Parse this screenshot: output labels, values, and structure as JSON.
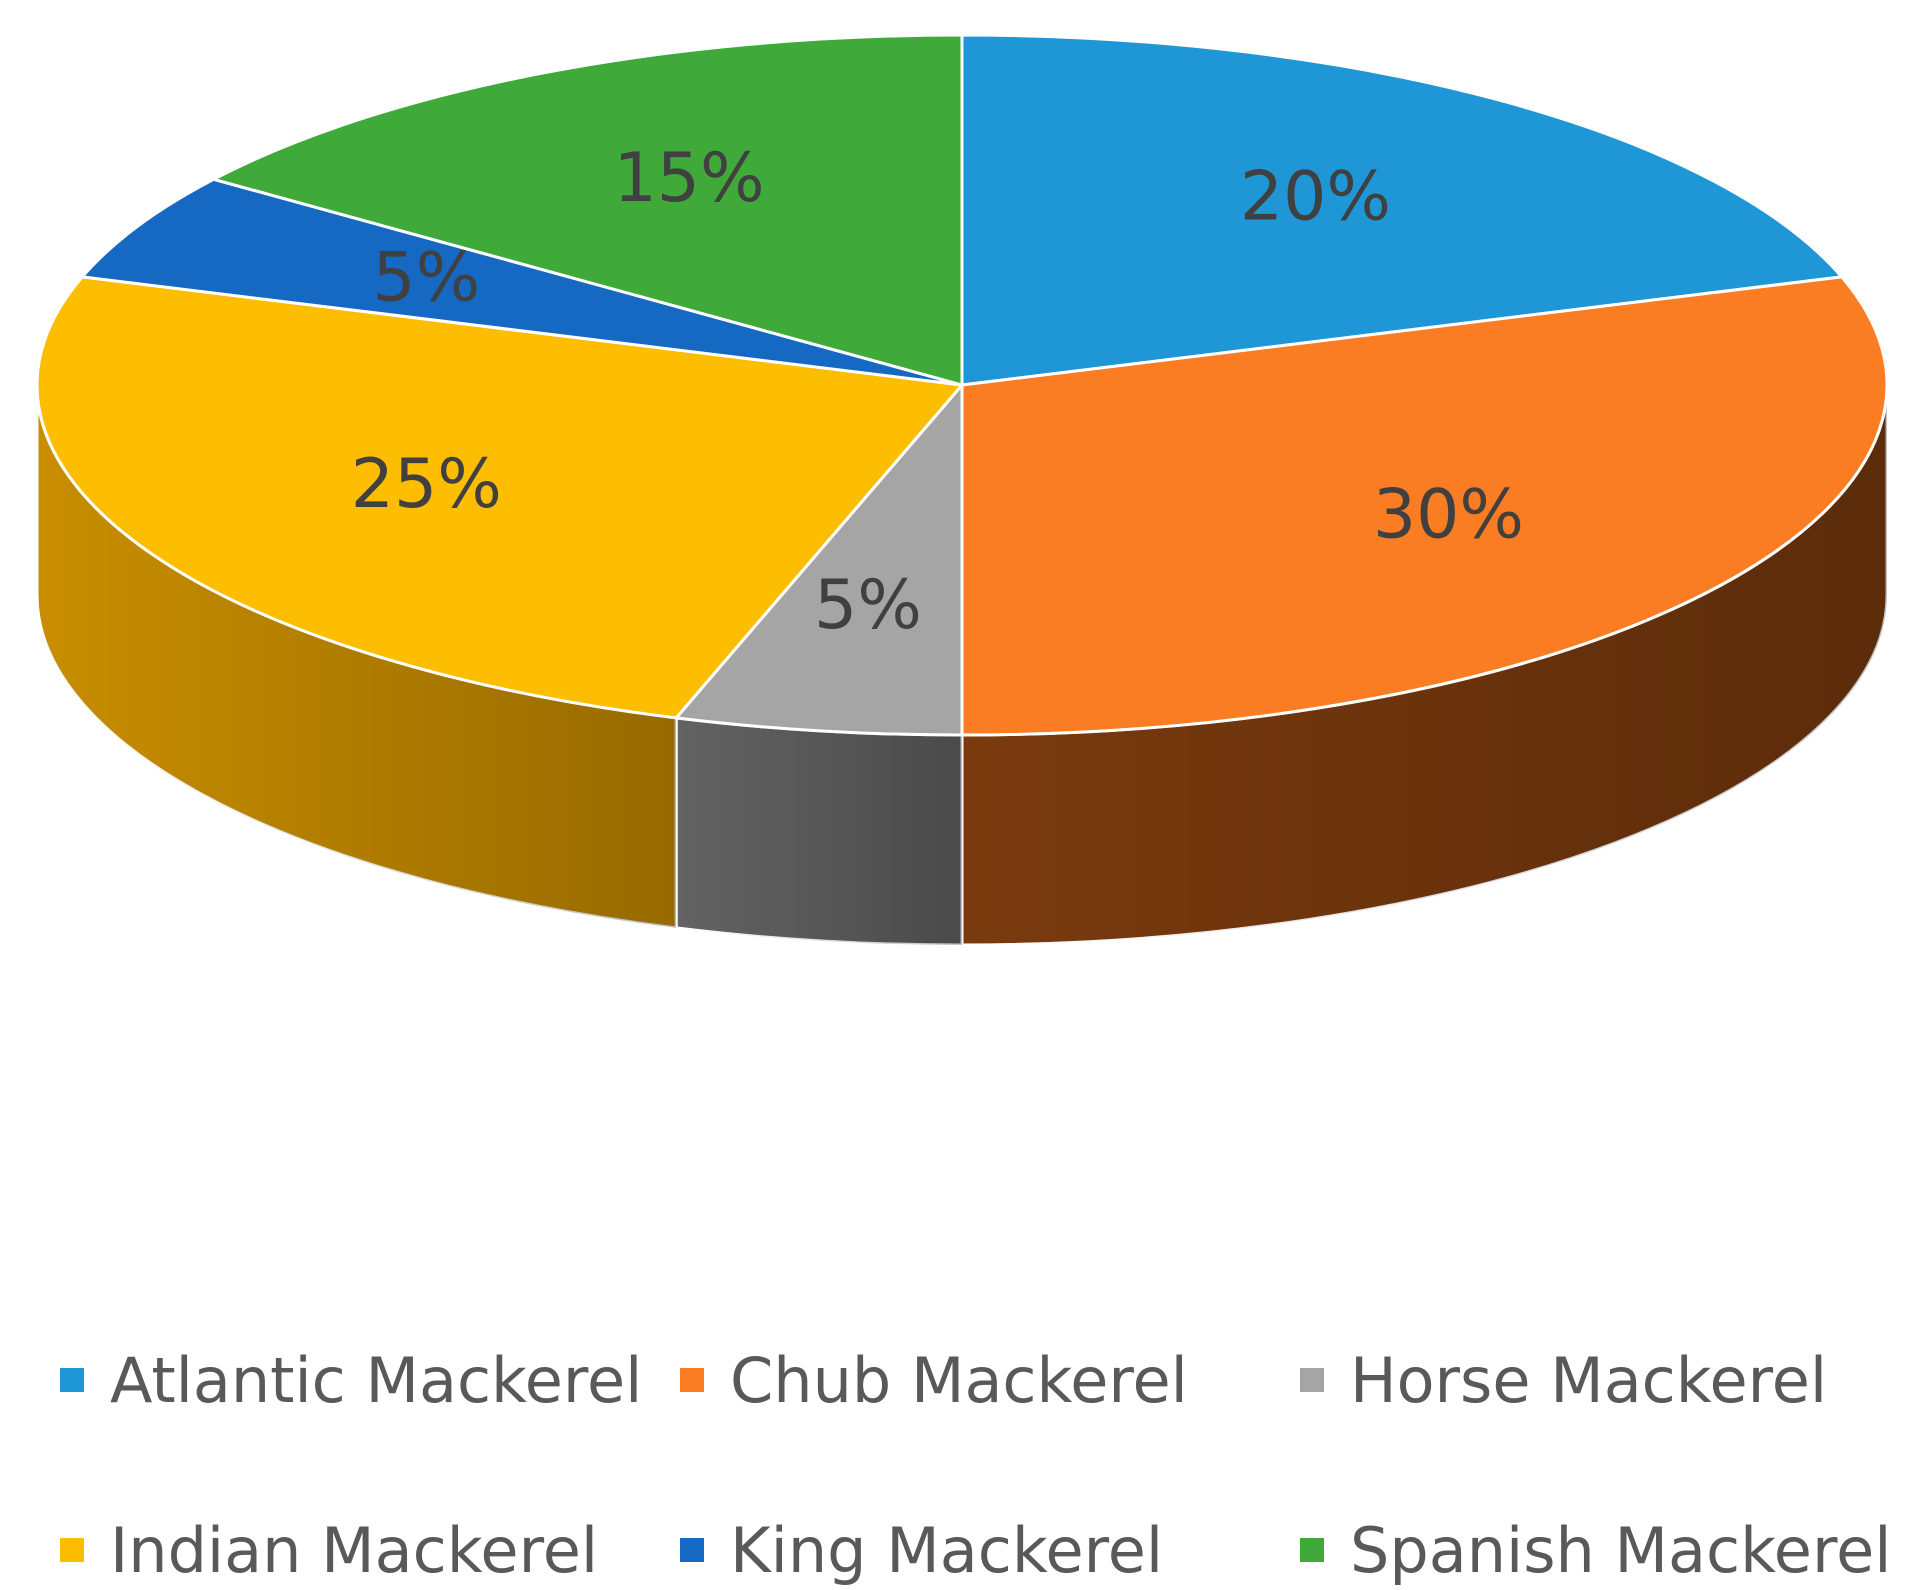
{
  "chart_data": {
    "type": "pie",
    "style": "3d",
    "categories": [
      "Atlantic Mackerel",
      "Chub Mackerel",
      "Horse Mackerel",
      "Indian Mackerel",
      "King Mackerel",
      "Spanish Mackerel"
    ],
    "values": [
      20,
      30,
      5,
      25,
      5,
      15
    ],
    "data_labels": [
      "20%",
      "30%",
      "5%",
      "25%",
      "5%",
      "15%"
    ],
    "colors": [
      "#1f96d6",
      "#fa7d23",
      "#a5a5a5",
      "#fdbd00",
      "#1569c2",
      "#3fa93a"
    ],
    "side_colors": [
      "#145f8a",
      "#7a3a0e",
      "#636363",
      "#c98e00",
      "#0d4282",
      "#276d24"
    ],
    "legend_position": "bottom",
    "title": ""
  },
  "legend": {
    "items": [
      {
        "label": "Atlantic Mackerel",
        "color": "#1f96d6"
      },
      {
        "label": "Chub Mackerel",
        "color": "#fa7d23"
      },
      {
        "label": "Horse Mackerel",
        "color": "#a5a5a5"
      },
      {
        "label": "Indian Mackerel",
        "color": "#fdbd00"
      },
      {
        "label": "King Mackerel",
        "color": "#1569c2"
      },
      {
        "label": "Spanish Mackerel",
        "color": "#3fa93a"
      }
    ]
  }
}
